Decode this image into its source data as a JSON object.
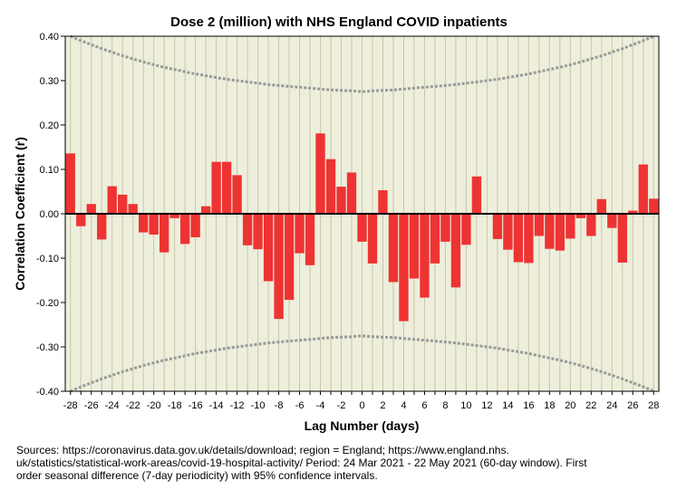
{
  "chart_data": {
    "type": "bar",
    "title": "Dose 2 (million) with NHS England COVID inpatients",
    "xlabel": "Lag Number (days)",
    "ylabel": "Correlation Coefficient (r)",
    "ylim": [
      -0.4,
      0.4
    ],
    "yticks": [
      -0.4,
      -0.3,
      -0.2,
      -0.1,
      0.0,
      0.1,
      0.2,
      0.3,
      0.4
    ],
    "ytick_labels": [
      "-0.40",
      "-0.30",
      "-0.20",
      "-0.10",
      "0.00",
      "0.10",
      "0.20",
      "0.30",
      "0.40"
    ],
    "xlim": [
      -28,
      28
    ],
    "xticks": [
      -28,
      -26,
      -24,
      -22,
      -20,
      -18,
      -16,
      -14,
      -12,
      -10,
      -8,
      -6,
      -4,
      -2,
      0,
      2,
      4,
      6,
      8,
      10,
      12,
      14,
      16,
      18,
      20,
      22,
      24,
      26,
      28
    ],
    "xtick_labels": [
      "-28",
      "-26",
      "-24",
      "-22",
      "-20",
      "-18",
      "-16",
      "-14",
      "-12",
      "-10",
      "-8",
      "-6",
      "-4",
      "-2",
      "0",
      "2",
      "4",
      "6",
      "8",
      "10",
      "12",
      "14",
      "16",
      "18",
      "20",
      "22",
      "24",
      "26",
      "28"
    ],
    "grid": true,
    "bar_color": "#ee3333",
    "background_color": "#eeeedd",
    "confidence_limit_color": "#999999",
    "lags": [
      -28,
      -27,
      -26,
      -25,
      -24,
      -23,
      -22,
      -21,
      -20,
      -19,
      -18,
      -17,
      -16,
      -15,
      -14,
      -13,
      -12,
      -11,
      -10,
      -9,
      -8,
      -7,
      -6,
      -5,
      -4,
      -3,
      -2,
      -1,
      0,
      1,
      2,
      3,
      4,
      5,
      6,
      7,
      8,
      9,
      10,
      11,
      12,
      13,
      14,
      15,
      16,
      17,
      18,
      19,
      20,
      21,
      22,
      23,
      24,
      25,
      26,
      27,
      28
    ],
    "values": [
      0.136,
      -0.028,
      0.022,
      -0.058,
      0.062,
      0.043,
      0.022,
      -0.042,
      -0.047,
      -0.087,
      -0.01,
      -0.068,
      -0.053,
      0.017,
      0.117,
      0.117,
      0.087,
      -0.071,
      -0.08,
      -0.152,
      -0.237,
      -0.194,
      -0.089,
      -0.116,
      0.181,
      0.123,
      0.061,
      0.093,
      -0.063,
      -0.112,
      0.053,
      -0.154,
      -0.242,
      -0.146,
      -0.189,
      -0.112,
      -0.063,
      -0.166,
      -0.07,
      0.084,
      0.0,
      -0.057,
      -0.081,
      -0.109,
      -0.111,
      -0.05,
      -0.079,
      -0.083,
      -0.056,
      -0.01,
      -0.05,
      0.033,
      -0.032,
      -0.11,
      0.007,
      0.111,
      0.034
    ],
    "confidence_limits": {
      "name": "95% confidence intervals",
      "upper": [
        0.4,
        0.39,
        0.381,
        0.372,
        0.364,
        0.356,
        0.349,
        0.342,
        0.336,
        0.33,
        0.325,
        0.32,
        0.315,
        0.311,
        0.307,
        0.303,
        0.3,
        0.297,
        0.294,
        0.291,
        0.289,
        0.287,
        0.285,
        0.283,
        0.281,
        0.279,
        0.278,
        0.277,
        0.275,
        0.277,
        0.278,
        0.279,
        0.281,
        0.283,
        0.285,
        0.287,
        0.289,
        0.291,
        0.294,
        0.297,
        0.3,
        0.303,
        0.307,
        0.311,
        0.315,
        0.32,
        0.325,
        0.33,
        0.336,
        0.342,
        0.349,
        0.356,
        0.364,
        0.372,
        0.381,
        0.39,
        0.4
      ]
    }
  },
  "caption": {
    "line1": "Sources: https://coronavirus.data.gov.uk/details/download; region = England; https://www.england.nhs.",
    "line2": "uk/statistics/statistical-work-areas/covid-19-hospital-activity/ Period: 24 Mar 2021 - 22 May 2021 (60-day window). First",
    "line3": "order seasonal difference (7-day periodicity) with 95% confidence intervals."
  }
}
